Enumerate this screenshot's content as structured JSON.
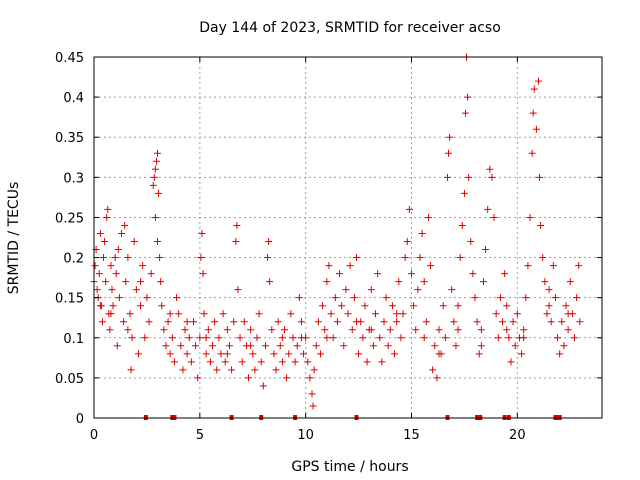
{
  "chart_data": {
    "type": "scatter",
    "title": "Day 144 of 2023, SRMTID for receiver acso",
    "xlabel": "GPS time / hours",
    "ylabel": "SRMTID / TECUs",
    "xlim": [
      0,
      24
    ],
    "ylim": [
      0,
      0.45
    ],
    "xticks": [
      0,
      5,
      10,
      15,
      20
    ],
    "yticks": [
      0,
      0.05,
      0.1,
      0.15,
      0.2,
      0.25,
      0.3,
      0.35,
      0.4,
      0.45
    ],
    "xtick_labels": [
      "0",
      "5",
      "10",
      "15",
      "20"
    ],
    "ytick_labels": [
      "0",
      "0.05",
      "0.1",
      "0.15",
      "0.2",
      "0.25",
      "0.3",
      "0.35",
      "0.4",
      "0.45"
    ],
    "grid": true,
    "marker": "+",
    "color": "#e00000",
    "series": [
      {
        "name": "SRMTID",
        "points": [
          [
            0.0,
            0.17
          ],
          [
            0.05,
            0.19
          ],
          [
            0.1,
            0.21
          ],
          [
            0.15,
            0.16
          ],
          [
            0.2,
            0.15
          ],
          [
            0.25,
            0.18
          ],
          [
            0.3,
            0.23
          ],
          [
            0.35,
            0.14
          ],
          [
            0.4,
            0.12
          ],
          [
            0.45,
            0.2
          ],
          [
            0.5,
            0.22
          ],
          [
            0.55,
            0.17
          ],
          [
            0.6,
            0.25
          ],
          [
            0.65,
            0.26
          ],
          [
            0.7,
            0.13
          ],
          [
            0.75,
            0.11
          ],
          [
            0.8,
            0.19
          ],
          [
            0.85,
            0.16
          ],
          [
            0.9,
            0.14
          ],
          [
            1.0,
            0.2
          ],
          [
            1.05,
            0.18
          ],
          [
            1.1,
            0.09
          ],
          [
            1.15,
            0.21
          ],
          [
            1.2,
            0.15
          ],
          [
            1.3,
            0.23
          ],
          [
            1.4,
            0.12
          ],
          [
            1.45,
            0.24
          ],
          [
            1.5,
            0.17
          ],
          [
            1.6,
            0.2
          ],
          [
            1.7,
            0.13
          ],
          [
            1.75,
            0.06
          ],
          [
            1.8,
            0.1
          ],
          [
            1.9,
            0.22
          ],
          [
            2.0,
            0.16
          ],
          [
            2.1,
            0.08
          ],
          [
            2.2,
            0.14
          ],
          [
            2.3,
            0.19
          ],
          [
            2.4,
            0.1
          ],
          [
            2.5,
            0.15
          ],
          [
            2.6,
            0.12
          ],
          [
            2.7,
            0.18
          ],
          [
            2.8,
            0.29
          ],
          [
            2.85,
            0.3
          ],
          [
            2.9,
            0.31
          ],
          [
            2.95,
            0.32
          ],
          [
            3.0,
            0.33
          ],
          [
            3.05,
            0.28
          ],
          [
            2.9,
            0.25
          ],
          [
            3.0,
            0.22
          ],
          [
            3.1,
            0.2
          ],
          [
            3.15,
            0.17
          ],
          [
            3.2,
            0.14
          ],
          [
            3.3,
            0.11
          ],
          [
            3.4,
            0.09
          ],
          [
            3.5,
            0.12
          ],
          [
            3.6,
            0.08
          ],
          [
            3.7,
            0.1
          ],
          [
            3.8,
            0.07
          ],
          [
            3.9,
            0.15
          ],
          [
            4.0,
            0.13
          ],
          [
            4.1,
            0.09
          ],
          [
            4.2,
            0.06
          ],
          [
            4.3,
            0.11
          ],
          [
            4.4,
            0.08
          ],
          [
            4.5,
            0.1
          ],
          [
            4.6,
            0.07
          ],
          [
            4.7,
            0.12
          ],
          [
            4.8,
            0.09
          ],
          [
            4.9,
            0.05
          ],
          [
            5.0,
            0.1
          ],
          [
            5.05,
            0.2
          ],
          [
            5.1,
            0.23
          ],
          [
            5.15,
            0.18
          ],
          [
            5.2,
            0.13
          ],
          [
            5.3,
            0.08
          ],
          [
            5.4,
            0.11
          ],
          [
            5.5,
            0.07
          ],
          [
            5.6,
            0.09
          ],
          [
            5.7,
            0.12
          ],
          [
            5.8,
            0.06
          ],
          [
            5.9,
            0.1
          ],
          [
            6.0,
            0.08
          ],
          [
            6.1,
            0.13
          ],
          [
            6.2,
            0.07
          ],
          [
            6.3,
            0.11
          ],
          [
            6.4,
            0.09
          ],
          [
            6.5,
            0.06
          ],
          [
            6.6,
            0.12
          ],
          [
            6.7,
            0.22
          ],
          [
            6.75,
            0.24
          ],
          [
            6.8,
            0.16
          ],
          [
            6.9,
            0.1
          ],
          [
            7.0,
            0.07
          ],
          [
            7.1,
            0.12
          ],
          [
            7.2,
            0.09
          ],
          [
            7.3,
            0.05
          ],
          [
            7.4,
            0.11
          ],
          [
            7.5,
            0.08
          ],
          [
            7.6,
            0.06
          ],
          [
            7.7,
            0.1
          ],
          [
            7.8,
            0.13
          ],
          [
            7.9,
            0.07
          ],
          [
            8.0,
            0.04
          ],
          [
            8.1,
            0.09
          ],
          [
            8.2,
            0.2
          ],
          [
            8.25,
            0.22
          ],
          [
            8.3,
            0.17
          ],
          [
            8.4,
            0.11
          ],
          [
            8.5,
            0.08
          ],
          [
            8.6,
            0.06
          ],
          [
            8.7,
            0.12
          ],
          [
            8.8,
            0.09
          ],
          [
            8.9,
            0.07
          ],
          [
            9.0,
            0.11
          ],
          [
            9.1,
            0.05
          ],
          [
            9.2,
            0.08
          ],
          [
            9.3,
            0.13
          ],
          [
            9.4,
            0.1
          ],
          [
            9.5,
            0.07
          ],
          [
            9.6,
            0.09
          ],
          [
            9.7,
            0.15
          ],
          [
            9.8,
            0.12
          ],
          [
            9.9,
            0.08
          ],
          [
            10.0,
            0.1
          ],
          [
            10.1,
            0.07
          ],
          [
            10.2,
            0.05
          ],
          [
            10.3,
            0.03
          ],
          [
            10.35,
            0.015
          ],
          [
            10.4,
            0.06
          ],
          [
            10.5,
            0.09
          ],
          [
            10.6,
            0.12
          ],
          [
            10.7,
            0.08
          ],
          [
            10.8,
            0.14
          ],
          [
            10.9,
            0.11
          ],
          [
            11.0,
            0.17
          ],
          [
            11.1,
            0.19
          ],
          [
            11.2,
            0.13
          ],
          [
            11.3,
            0.1
          ],
          [
            11.4,
            0.15
          ],
          [
            11.5,
            0.12
          ],
          [
            11.6,
            0.18
          ],
          [
            11.7,
            0.14
          ],
          [
            11.8,
            0.09
          ],
          [
            11.9,
            0.16
          ],
          [
            12.0,
            0.13
          ],
          [
            12.1,
            0.19
          ],
          [
            12.2,
            0.11
          ],
          [
            12.3,
            0.15
          ],
          [
            12.4,
            0.2
          ],
          [
            12.5,
            0.08
          ],
          [
            12.6,
            0.12
          ],
          [
            12.7,
            0.1
          ],
          [
            12.8,
            0.14
          ],
          [
            12.9,
            0.07
          ],
          [
            13.0,
            0.11
          ],
          [
            13.1,
            0.16
          ],
          [
            13.2,
            0.09
          ],
          [
            13.3,
            0.13
          ],
          [
            13.4,
            0.18
          ],
          [
            13.5,
            0.1
          ],
          [
            13.6,
            0.07
          ],
          [
            13.7,
            0.12
          ],
          [
            13.8,
            0.15
          ],
          [
            13.9,
            0.09
          ],
          [
            14.0,
            0.11
          ],
          [
            14.1,
            0.14
          ],
          [
            14.2,
            0.08
          ],
          [
            14.3,
            0.12
          ],
          [
            14.4,
            0.17
          ],
          [
            14.5,
            0.1
          ],
          [
            14.6,
            0.13
          ],
          [
            14.7,
            0.2
          ],
          [
            14.8,
            0.22
          ],
          [
            14.9,
            0.26
          ],
          [
            15.0,
            0.18
          ],
          [
            15.1,
            0.14
          ],
          [
            15.2,
            0.11
          ],
          [
            15.3,
            0.16
          ],
          [
            15.4,
            0.2
          ],
          [
            15.5,
            0.23
          ],
          [
            15.6,
            0.17
          ],
          [
            15.7,
            0.12
          ],
          [
            15.8,
            0.25
          ],
          [
            15.9,
            0.19
          ],
          [
            16.0,
            0.06
          ],
          [
            16.1,
            0.09
          ],
          [
            16.2,
            0.05
          ],
          [
            16.3,
            0.11
          ],
          [
            16.4,
            0.08
          ],
          [
            16.5,
            0.14
          ],
          [
            16.6,
            0.1
          ],
          [
            16.7,
            0.3
          ],
          [
            16.75,
            0.33
          ],
          [
            16.8,
            0.35
          ],
          [
            16.9,
            0.16
          ],
          [
            17.0,
            0.12
          ],
          [
            17.1,
            0.09
          ],
          [
            17.2,
            0.14
          ],
          [
            17.3,
            0.2
          ],
          [
            17.4,
            0.24
          ],
          [
            17.5,
            0.28
          ],
          [
            17.55,
            0.38
          ],
          [
            17.6,
            0.45
          ],
          [
            17.65,
            0.4
          ],
          [
            17.7,
            0.3
          ],
          [
            17.8,
            0.22
          ],
          [
            17.9,
            0.18
          ],
          [
            18.0,
            0.15
          ],
          [
            18.1,
            0.12
          ],
          [
            18.2,
            0.08
          ],
          [
            18.3,
            0.11
          ],
          [
            18.4,
            0.17
          ],
          [
            18.5,
            0.21
          ],
          [
            18.6,
            0.26
          ],
          [
            18.7,
            0.31
          ],
          [
            18.8,
            0.3
          ],
          [
            18.9,
            0.25
          ],
          [
            19.0,
            0.13
          ],
          [
            19.1,
            0.1
          ],
          [
            19.2,
            0.15
          ],
          [
            19.3,
            0.12
          ],
          [
            19.4,
            0.18
          ],
          [
            19.5,
            0.14
          ],
          [
            19.6,
            0.1
          ],
          [
            19.7,
            0.07
          ],
          [
            19.8,
            0.12
          ],
          [
            19.9,
            0.09
          ],
          [
            20.0,
            0.13
          ],
          [
            20.1,
            0.1
          ],
          [
            20.2,
            0.08
          ],
          [
            20.3,
            0.11
          ],
          [
            20.4,
            0.15
          ],
          [
            20.5,
            0.19
          ],
          [
            20.6,
            0.25
          ],
          [
            20.7,
            0.33
          ],
          [
            20.75,
            0.38
          ],
          [
            20.8,
            0.41
          ],
          [
            20.9,
            0.36
          ],
          [
            21.0,
            0.42
          ],
          [
            21.05,
            0.3
          ],
          [
            21.1,
            0.24
          ],
          [
            21.2,
            0.2
          ],
          [
            21.3,
            0.17
          ],
          [
            21.4,
            0.13
          ],
          [
            21.5,
            0.16
          ],
          [
            21.6,
            0.12
          ],
          [
            21.7,
            0.19
          ],
          [
            21.8,
            0.15
          ],
          [
            21.9,
            0.1
          ],
          [
            22.0,
            0.08
          ],
          [
            22.1,
            0.12
          ],
          [
            22.2,
            0.09
          ],
          [
            22.3,
            0.14
          ],
          [
            22.4,
            0.11
          ],
          [
            22.5,
            0.17
          ],
          [
            22.6,
            0.13
          ],
          [
            22.7,
            0.1
          ],
          [
            22.8,
            0.15
          ],
          [
            22.9,
            0.19
          ],
          [
            22.95,
            0.12
          ],
          [
            0.3,
            0.14
          ],
          [
            0.8,
            0.13
          ],
          [
            1.6,
            0.11
          ],
          [
            2.2,
            0.17
          ],
          [
            3.6,
            0.13
          ],
          [
            4.4,
            0.12
          ],
          [
            5.3,
            0.1
          ],
          [
            6.3,
            0.08
          ],
          [
            7.4,
            0.09
          ],
          [
            8.9,
            0.1
          ],
          [
            9.8,
            0.1
          ],
          [
            11.0,
            0.1
          ],
          [
            12.4,
            0.12
          ],
          [
            13.1,
            0.11
          ],
          [
            14.3,
            0.13
          ],
          [
            15.6,
            0.1
          ],
          [
            16.3,
            0.08
          ],
          [
            17.2,
            0.11
          ],
          [
            18.3,
            0.09
          ],
          [
            19.5,
            0.11
          ],
          [
            20.3,
            0.1
          ],
          [
            21.5,
            0.14
          ],
          [
            22.4,
            0.13
          ]
        ]
      }
    ],
    "gap_markers_hours": [
      2.45,
      3.7,
      3.8,
      6.5,
      7.9,
      9.5,
      12.4,
      16.7,
      18.1,
      18.25,
      19.4,
      19.6,
      21.8,
      21.9,
      22.0
    ]
  }
}
